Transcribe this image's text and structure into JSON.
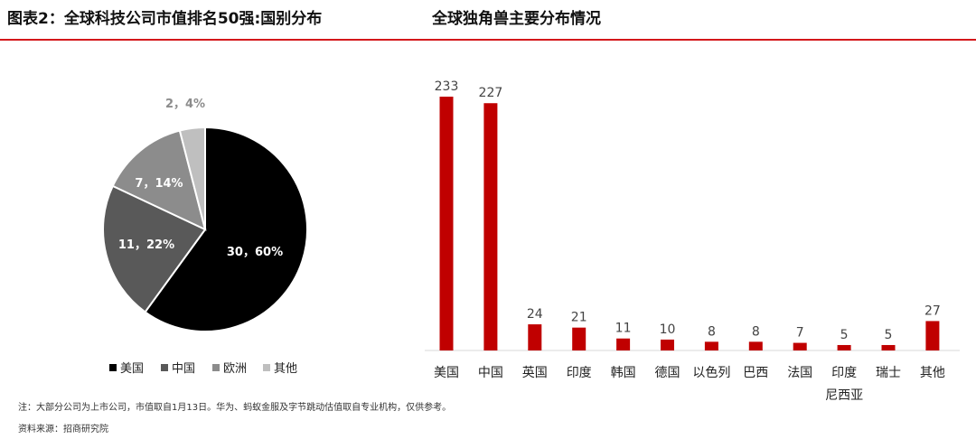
{
  "titles": {
    "left": "图表2：全球科技公司市值排名50强:国别分布",
    "right": "全球独角兽主要分布情况"
  },
  "colors": {
    "accent": "#d4171b",
    "bar": "#c00000",
    "pie": [
      "#000000",
      "#595959",
      "#8c8c8c",
      "#bfbfbf"
    ]
  },
  "chart_data": [
    {
      "type": "pie",
      "slices": [
        {
          "name": "美国",
          "value": 30,
          "percent": 60,
          "label": "30，60%"
        },
        {
          "name": "中国",
          "value": 11,
          "percent": 22,
          "label": "11，22%"
        },
        {
          "name": "欧洲",
          "value": 7,
          "percent": 14,
          "label": "7，14%"
        },
        {
          "name": "其他",
          "value": 2,
          "percent": 4,
          "label": "2，4%"
        }
      ],
      "legend_position": "bottom"
    },
    {
      "type": "bar",
      "categories": [
        "美国",
        "中国",
        "英国",
        "印度",
        "韩国",
        "德国",
        "以色列",
        "巴西",
        "法国",
        "印度尼西亚",
        "瑞士",
        "其他"
      ],
      "category_lines": [
        [
          "美国"
        ],
        [
          "中国"
        ],
        [
          "英国"
        ],
        [
          "印度"
        ],
        [
          "韩国"
        ],
        [
          "德国"
        ],
        [
          "以色列"
        ],
        [
          "巴西"
        ],
        [
          "法国"
        ],
        [
          "印度",
          "尼西亚"
        ],
        [
          "瑞士"
        ],
        [
          "其他"
        ]
      ],
      "values": [
        233,
        227,
        24,
        21,
        11,
        10,
        8,
        8,
        7,
        5,
        5,
        27
      ],
      "ylim": [
        0,
        233
      ],
      "grid": false
    }
  ],
  "note": "注：大部分公司为上市公司，市值取自1月13日。华为、蚂蚁金服及字节跳动估值取自专业机构，仅供参考。",
  "source": "资料来源：招商研究院"
}
